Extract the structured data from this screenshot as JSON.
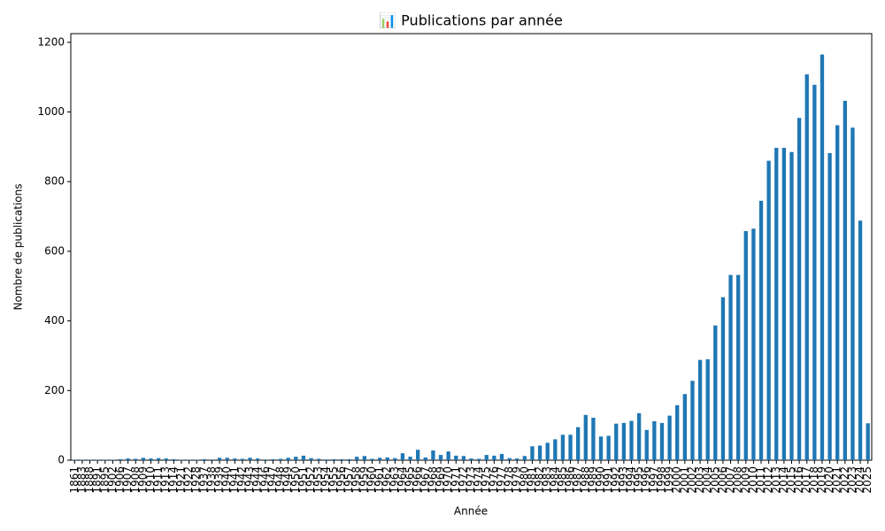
{
  "chart_data": {
    "type": "bar",
    "title": "📊 Publications par année",
    "xlabel": "Année",
    "ylabel": "Nombre de publications",
    "categories": [
      "1861",
      "1883",
      "1888",
      "1891",
      "1895",
      "1902",
      "1906",
      "1907",
      "1908",
      "1909",
      "1910",
      "1911",
      "1913",
      "1914",
      "1921",
      "1922",
      "1928",
      "1937",
      "1938",
      "1939",
      "1940",
      "1941",
      "1942",
      "1943",
      "1944",
      "1946",
      "1947",
      "1948",
      "1949",
      "1950",
      "1951",
      "1952",
      "1953",
      "1954",
      "1955",
      "1956",
      "1957",
      "1958",
      "1959",
      "1960",
      "1961",
      "1962",
      "1963",
      "1964",
      "1965",
      "1966",
      "1967",
      "1968",
      "1969",
      "1970",
      "1971",
      "1972",
      "1973",
      "1974",
      "1975",
      "1976",
      "1977",
      "1978",
      "1979",
      "1980",
      "1981",
      "1982",
      "1983",
      "1984",
      "1985",
      "1986",
      "1987",
      "1988",
      "1989",
      "1990",
      "1991",
      "1992",
      "1993",
      "1994",
      "1995",
      "1996",
      "1997",
      "1998",
      "1999",
      "2000",
      "2001",
      "2002",
      "2003",
      "2004",
      "2005",
      "2006",
      "2007",
      "2008",
      "2009",
      "2010",
      "2011",
      "2012",
      "2013",
      "2014",
      "2015",
      "2016",
      "2017",
      "2018",
      "2019",
      "2020",
      "2021",
      "2022",
      "2023",
      "2024",
      "2025"
    ],
    "values": [
      1,
      1,
      1,
      1,
      1,
      1,
      3,
      5,
      4,
      7,
      5,
      6,
      5,
      3,
      1,
      1,
      1,
      3,
      2,
      7,
      7,
      5,
      4,
      7,
      5,
      2,
      3,
      4,
      7,
      10,
      13,
      6,
      4,
      2,
      3,
      3,
      3,
      10,
      12,
      4,
      7,
      8,
      6,
      20,
      10,
      30,
      8,
      28,
      15,
      25,
      13,
      12,
      5,
      4,
      15,
      13,
      18,
      6,
      5,
      12,
      40,
      42,
      50,
      60,
      73,
      73,
      95,
      130,
      122,
      68,
      70,
      105,
      107,
      113,
      135,
      87,
      112,
      107,
      128,
      158,
      190,
      228,
      288,
      290,
      387,
      468,
      532,
      532,
      658,
      665,
      745,
      860,
      897,
      897,
      885,
      983,
      1108,
      1078,
      1165,
      882,
      962,
      1032,
      955,
      688,
      106
    ],
    "color": "#1f77b4",
    "ylim": [
      0,
      1225
    ],
    "yticks": [
      0,
      200,
      400,
      600,
      800,
      1000,
      1200
    ],
    "grid": false
  }
}
